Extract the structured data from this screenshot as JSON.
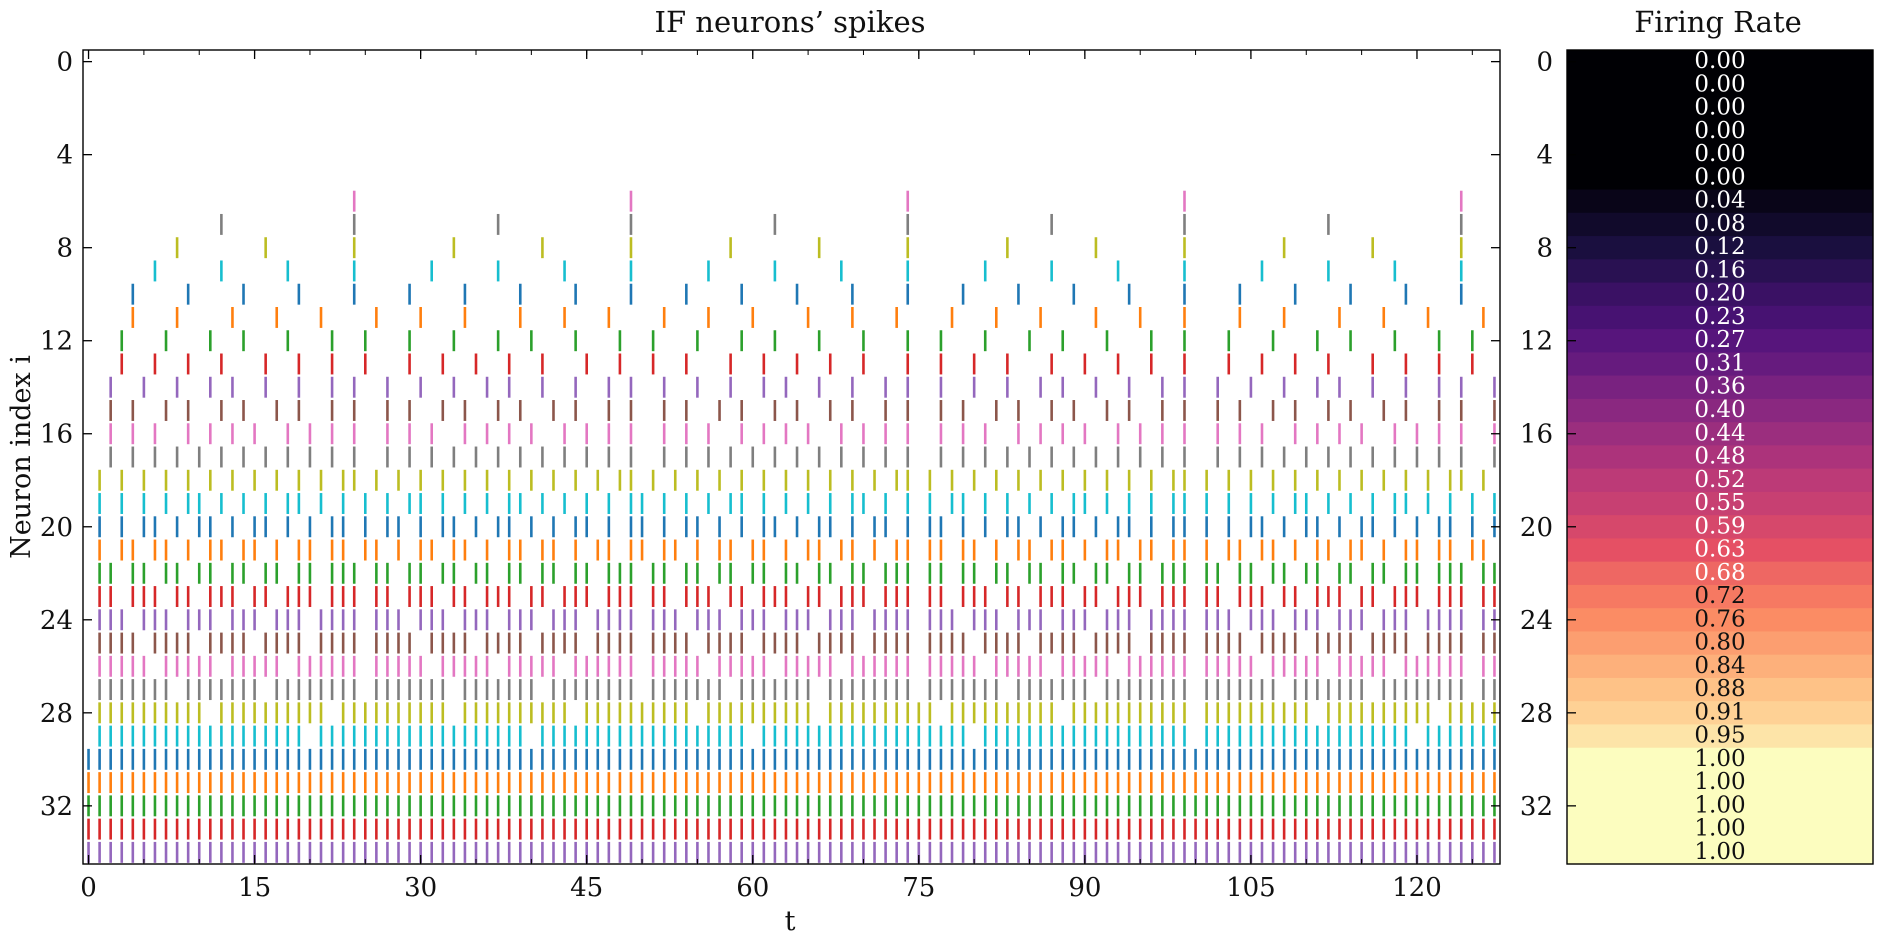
{
  "chart_data": [
    {
      "type": "eventplot",
      "title": "IF neurons’ spikes",
      "xlabel": "t",
      "ylabel": "Neuron index i",
      "xlim": [
        -0.5,
        127.5
      ],
      "ylim": [
        34.5,
        -0.5
      ],
      "xticks": [
        "0",
        "15",
        "30",
        "45",
        "60",
        "75",
        "90",
        "105",
        "120"
      ],
      "yticks": [
        "0",
        "4",
        "8",
        "12",
        "16",
        "20",
        "24",
        "28",
        "32"
      ],
      "num_neurons": 35,
      "num_steps": 128,
      "series_colors": [
        "#1f77b4",
        "#ff7f0e",
        "#2ca02c",
        "#d62728",
        "#9467bd",
        "#8c564b",
        "#e377c2",
        "#7f7f7f",
        "#bcbd22",
        "#17becf"
      ],
      "firing_rates": [
        0.0,
        0.0,
        0.0,
        0.0,
        0.0,
        0.0,
        0.04,
        0.08,
        0.12,
        0.16,
        0.2,
        0.23,
        0.27,
        0.31,
        0.36,
        0.4,
        0.44,
        0.48,
        0.52,
        0.55,
        0.59,
        0.63,
        0.68,
        0.72,
        0.76,
        0.8,
        0.84,
        0.88,
        0.91,
        0.95,
        1.0,
        1.0,
        1.0,
        1.0,
        1.0
      ]
    },
    {
      "type": "heatmap",
      "title": "Firing Rate",
      "yticks": [
        "0",
        "4",
        "8",
        "12",
        "16",
        "20",
        "24",
        "28",
        "32"
      ],
      "colormap": "magma",
      "cell_labels": [
        "0.00",
        "0.00",
        "0.00",
        "0.00",
        "0.00",
        "0.00",
        "0.04",
        "0.08",
        "0.12",
        "0.16",
        "0.20",
        "0.23",
        "0.27",
        "0.31",
        "0.36",
        "0.40",
        "0.44",
        "0.48",
        "0.52",
        "0.55",
        "0.59",
        "0.63",
        "0.68",
        "0.72",
        "0.76",
        "0.80",
        "0.84",
        "0.88",
        "0.91",
        "0.95",
        "1.00",
        "1.00",
        "1.00",
        "1.00",
        "1.00"
      ]
    }
  ]
}
